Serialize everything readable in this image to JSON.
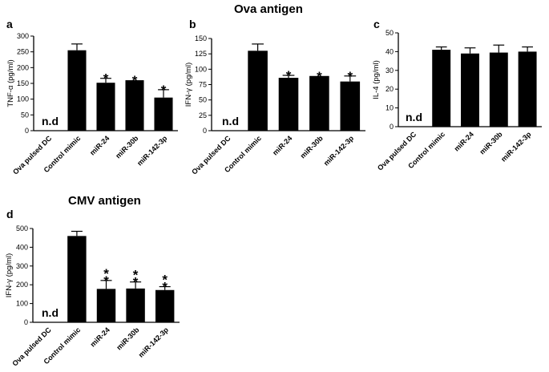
{
  "figure": {
    "ova_title": "Ova antigen",
    "cmv_title": "CMV antigen"
  },
  "chart_data": [
    {
      "panel": "a",
      "type": "bar",
      "ylabel": "TNF-α (pg/ml)",
      "ylim": [
        0,
        300
      ],
      "yticks": [
        0,
        50,
        100,
        150,
        200,
        250,
        300
      ],
      "categories": [
        "Ova pulsed DC",
        "Control mimic",
        "miR-24",
        "miR-30b",
        "miR-142-3p"
      ],
      "values": [
        null,
        255,
        152,
        160,
        105
      ],
      "errors": [
        null,
        20,
        14,
        0,
        25
      ],
      "annotations": [
        "n.d",
        "",
        "*",
        "*",
        "*"
      ]
    },
    {
      "panel": "b",
      "type": "bar",
      "ylabel": "IFN-γ (pg/ml)",
      "ylim": [
        0,
        150
      ],
      "yticks": [
        0,
        25,
        50,
        75,
        100,
        125,
        150
      ],
      "categories": [
        "Ova pulsed DC",
        "Control mimic",
        "miR-24",
        "miR-30b",
        "miR-142-3p"
      ],
      "values": [
        null,
        130,
        86,
        89,
        80
      ],
      "errors": [
        null,
        11,
        4,
        0,
        9
      ],
      "annotations": [
        "n.d",
        "",
        "*",
        "*",
        "*"
      ]
    },
    {
      "panel": "c",
      "type": "bar",
      "ylabel": "IL-4 (pg/ml)",
      "ylim": [
        0,
        50
      ],
      "yticks": [
        0,
        10,
        20,
        30,
        40,
        50
      ],
      "categories": [
        "Ova pulsed DC",
        "Control mimic",
        "miR-24",
        "miR-30b",
        "miR-142-3p"
      ],
      "values": [
        null,
        41,
        39,
        39.5,
        40
      ],
      "errors": [
        null,
        1.5,
        3,
        4,
        2.5
      ],
      "annotations": [
        "n.d",
        "",
        "",
        "",
        ""
      ]
    },
    {
      "panel": "d",
      "type": "bar",
      "ylabel": "IFN-γ (pg/ml)",
      "ylim": [
        0,
        500
      ],
      "yticks": [
        0,
        100,
        200,
        300,
        400,
        500
      ],
      "categories": [
        "Ova pulsed DC",
        "Control mimic",
        "miR-24",
        "miR-30b",
        "miR-142-3p"
      ],
      "values": [
        null,
        460,
        178,
        180,
        172
      ],
      "errors": [
        null,
        25,
        45,
        35,
        18
      ],
      "annotations": [
        "n.d",
        "",
        "**",
        "**",
        "**"
      ]
    }
  ]
}
